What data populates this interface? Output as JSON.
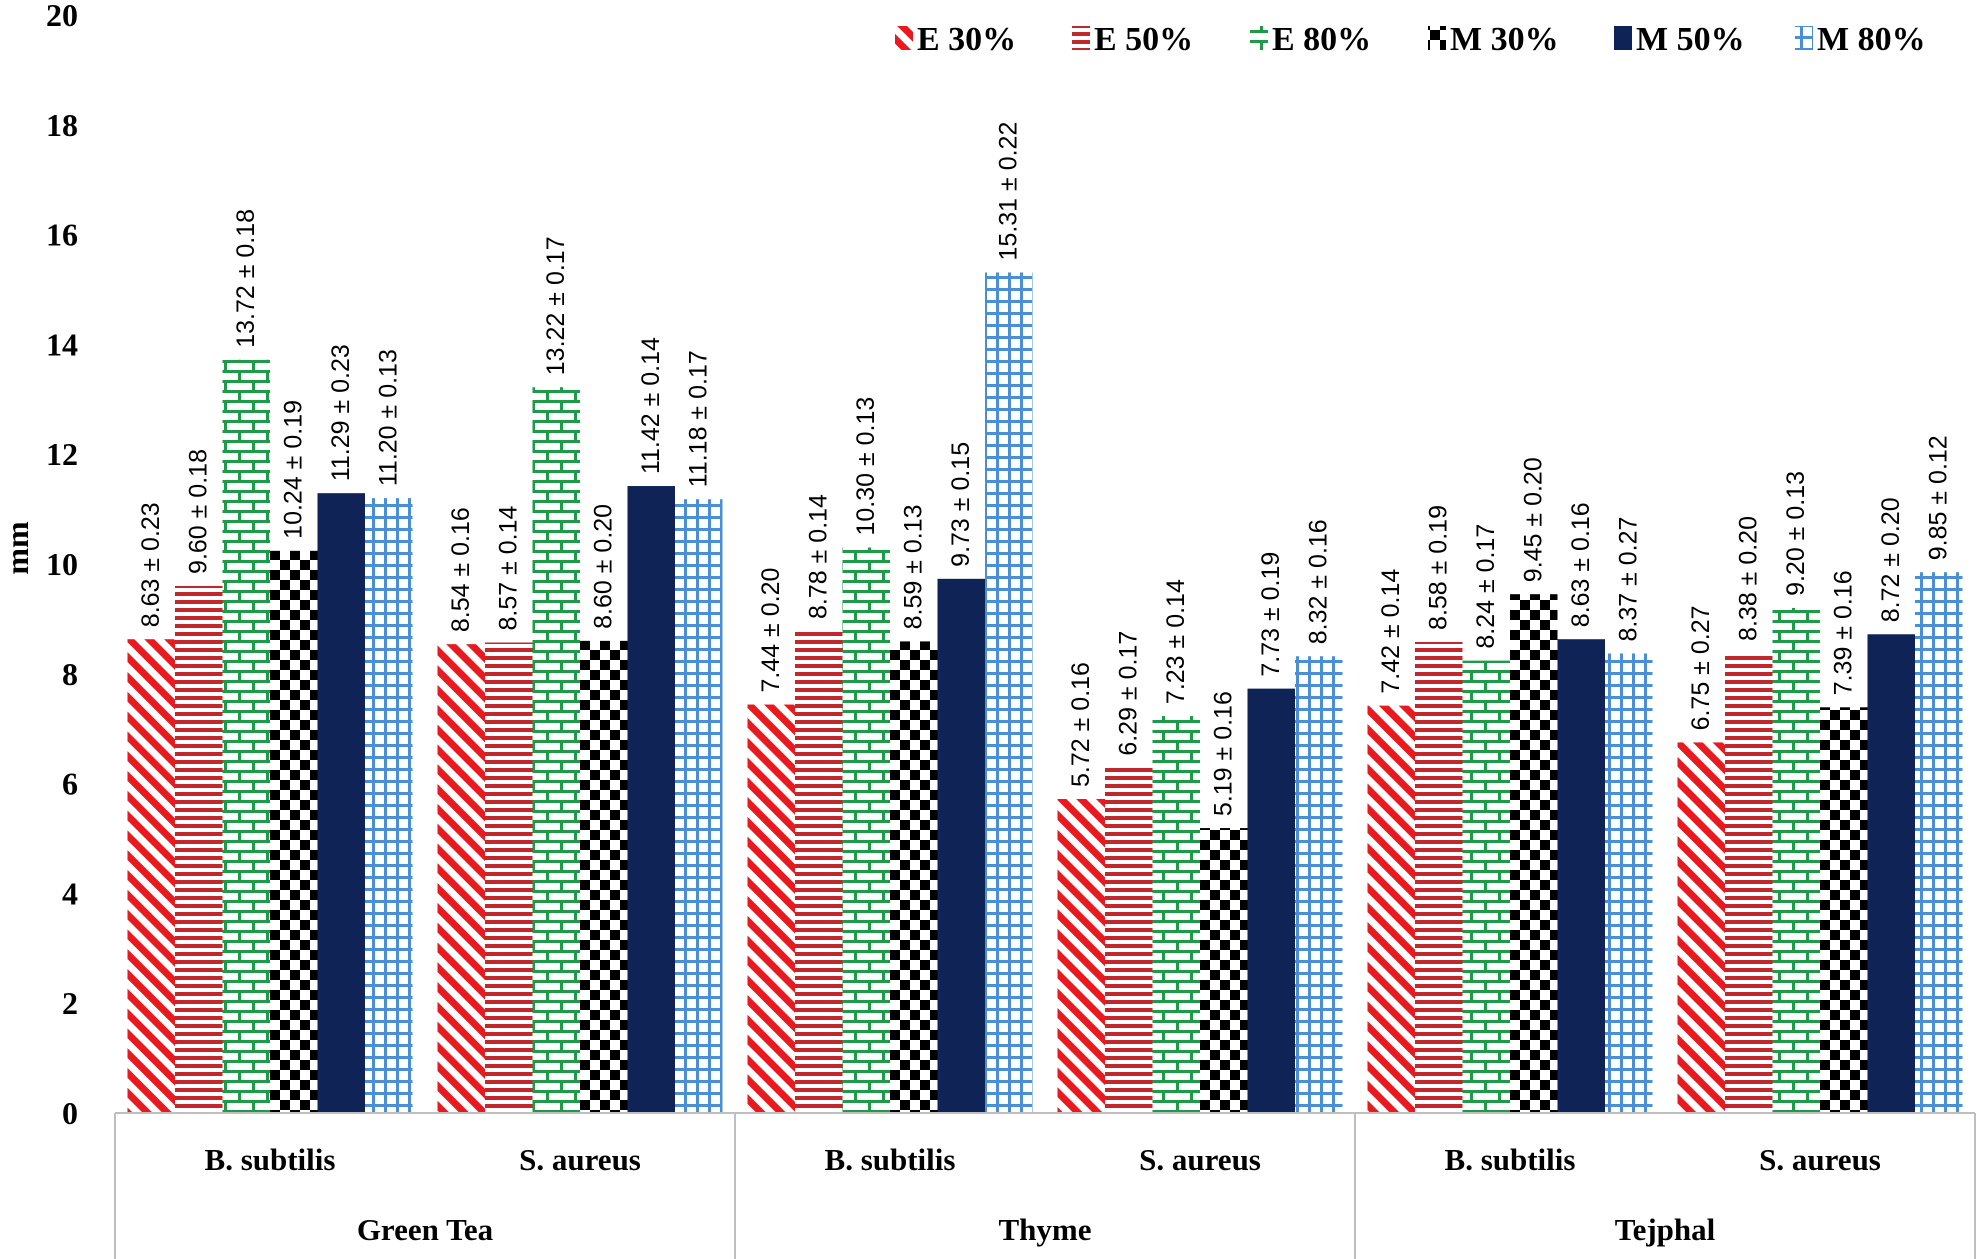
{
  "chart_data": {
    "type": "bar",
    "ylabel": "mm",
    "ylim": [
      0,
      20
    ],
    "yticks": [
      0,
      2,
      4,
      6,
      8,
      10,
      12,
      14,
      16,
      18,
      20
    ],
    "groups": [
      {
        "name": "Green Tea",
        "subcategories": [
          "B. subtilis",
          "S. aureus"
        ]
      },
      {
        "name": "Thyme",
        "subcategories": [
          "B. subtilis",
          "S. aureus"
        ]
      },
      {
        "name": "Tejphal",
        "subcategories": [
          "B. subtilis",
          "S. aureus"
        ]
      }
    ],
    "legend_position": "top-right",
    "series": [
      {
        "name": "E 30%",
        "color": "#e8191f",
        "pattern": "diagonal",
        "values": [
          8.63,
          8.54,
          7.44,
          5.72,
          7.42,
          6.75
        ],
        "labels": [
          "8.63 ± 0.23",
          "8.54 ± 0.16",
          "7.44 ± 0.20",
          "5.72 ± 0.16",
          "7.42 ± 0.14",
          "6.75 ± 0.27"
        ]
      },
      {
        "name": "E 50%",
        "color": "#c0282d",
        "pattern": "horizontal",
        "values": [
          9.6,
          8.57,
          8.78,
          6.29,
          8.58,
          8.38
        ],
        "labels": [
          "9.60 ± 0.18",
          "8.57 ± 0.14",
          "8.78 ± 0.14",
          "6.29 ± 0.17",
          "8.58 ± 0.19",
          "8.38 ± 0.20"
        ]
      },
      {
        "name": "E 80%",
        "color": "#1e9a48",
        "pattern": "brick",
        "values": [
          13.72,
          13.22,
          10.3,
          7.23,
          8.24,
          9.2
        ],
        "labels": [
          "13.72 ± 0.18",
          "13.22 ± 0.17",
          "10.30 ± 0.13",
          "7.23 ± 0.14",
          "8.24 ± 0.17",
          "9.20 ± 0.13"
        ]
      },
      {
        "name": "M 30%",
        "color": "#000000",
        "pattern": "checker",
        "values": [
          10.24,
          8.6,
          8.59,
          5.19,
          9.45,
          7.39
        ],
        "labels": [
          "10.24 ± 0.19",
          "8.60 ± 0.20",
          "8.59 ± 0.13",
          "5.19 ± 0.16",
          "9.45 ± 0.20",
          "7.39 ± 0.16"
        ]
      },
      {
        "name": "M 50%",
        "color": "#0f2357",
        "pattern": "solid",
        "values": [
          11.29,
          11.42,
          9.73,
          7.73,
          8.63,
          8.72
        ],
        "labels": [
          "11.29 ± 0.23",
          "11.42 ± 0.14",
          "9.73 ± 0.15",
          "7.73 ± 0.19",
          "8.63 ± 0.16",
          "8.72 ± 0.20"
        ]
      },
      {
        "name": "M 80%",
        "color": "#4a8fd6",
        "pattern": "grid",
        "values": [
          11.2,
          11.18,
          15.31,
          8.32,
          8.37,
          9.85
        ],
        "labels": [
          "11.20 ± 0.13",
          "11.18 ± 0.17",
          "15.31 ± 0.22",
          "8.32 ± 0.16",
          "8.37 ± 0.27",
          "9.85 ± 0.12"
        ]
      }
    ]
  }
}
